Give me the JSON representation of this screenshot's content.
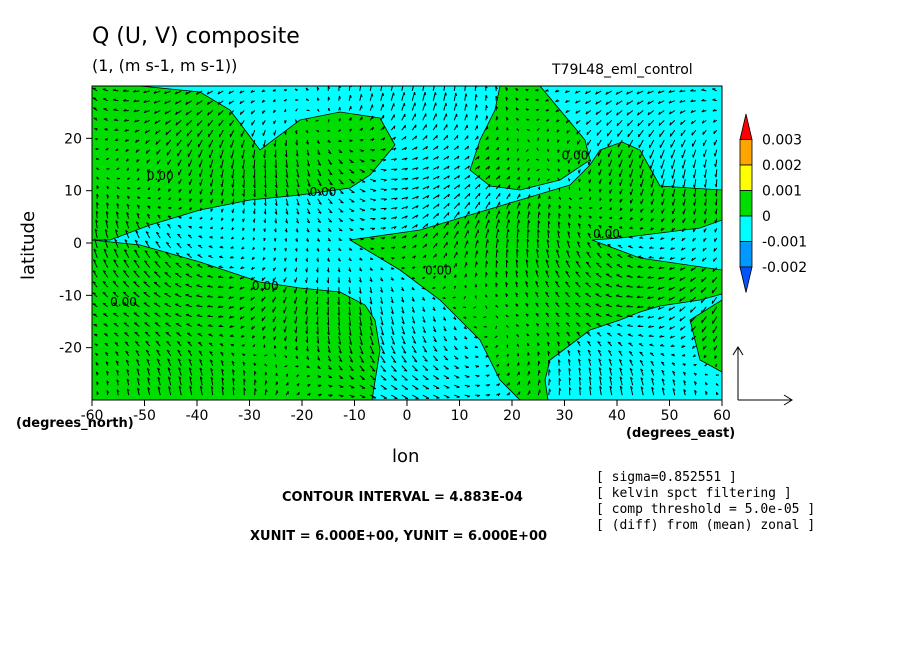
{
  "header": {
    "title": "Q (U, V) composite",
    "subtitle": "(1, (m s-1, m s-1))",
    "experiment": "T79L48_eml_control"
  },
  "axes": {
    "xlabel": "lon",
    "ylabel": "latitude",
    "x_unit": "(degrees_east)",
    "y_unit": "(degrees_north)"
  },
  "footer": {
    "contour_interval": "CONTOUR INTERVAL = 4.883E-04",
    "units": "XUNIT = 6.000E+00, YUNIT = 6.000E+00",
    "notes": [
      "[ sigma=0.852551 ]",
      "[ kelvin spct filtering ]",
      "[ comp threshold = 5.0e-05 ]",
      "[ (diff) from (mean) zonal ]"
    ]
  },
  "colors": {
    "cyan": "#00ffff",
    "green": "#00dd00",
    "yellow": "#ffff00",
    "orange": "#ffa500",
    "red": "#ff0000",
    "blue": "#0099ff",
    "deepblue": "#0055ff"
  },
  "chart_data": {
    "type": "heatmap",
    "title": "Q (U, V) composite",
    "xlabel": "lon",
    "ylabel": "latitude",
    "xlim": [
      -60,
      60
    ],
    "ylim": [
      -30,
      30
    ],
    "x_ticks": [
      -60,
      -50,
      -40,
      -30,
      -20,
      -10,
      0,
      10,
      20,
      30,
      40,
      50,
      60
    ],
    "y_ticks": [
      20,
      10,
      0,
      -10,
      -20
    ],
    "x_tick_labels": [
      "-60",
      "-50",
      "-40",
      "-30",
      "-20",
      "-10",
      "0",
      "10",
      "20",
      "30",
      "40",
      "50",
      "60"
    ],
    "y_tick_labels": [
      "20",
      "10",
      "0",
      "-10",
      "-20"
    ],
    "colorbar": {
      "labels": [
        "0.003",
        "0.002",
        "0.001",
        "0",
        "-0.001",
        "-0.002"
      ],
      "colors": [
        "#ff0000",
        "#ffa500",
        "#ffff00",
        "#00dd00",
        "#00ffff",
        "#0099ff",
        "#0055ff"
      ]
    },
    "contour_labels": [
      {
        "text": "0.00",
        "lon": -47,
        "lat": 12
      },
      {
        "text": "0.00",
        "lon": -16,
        "lat": 9
      },
      {
        "text": "0.00",
        "lon": -27,
        "lat": -9
      },
      {
        "text": "0.00",
        "lon": -54,
        "lat": -12
      },
      {
        "text": "0.00",
        "lon": 6,
        "lat": -6
      },
      {
        "text": "0.00",
        "lon": 32,
        "lat": 16
      },
      {
        "text": "0.00",
        "lon": 38,
        "lat": 1
      }
    ],
    "vector_reference": {
      "x_unit": 6.0,
      "y_unit": 6.0
    }
  }
}
